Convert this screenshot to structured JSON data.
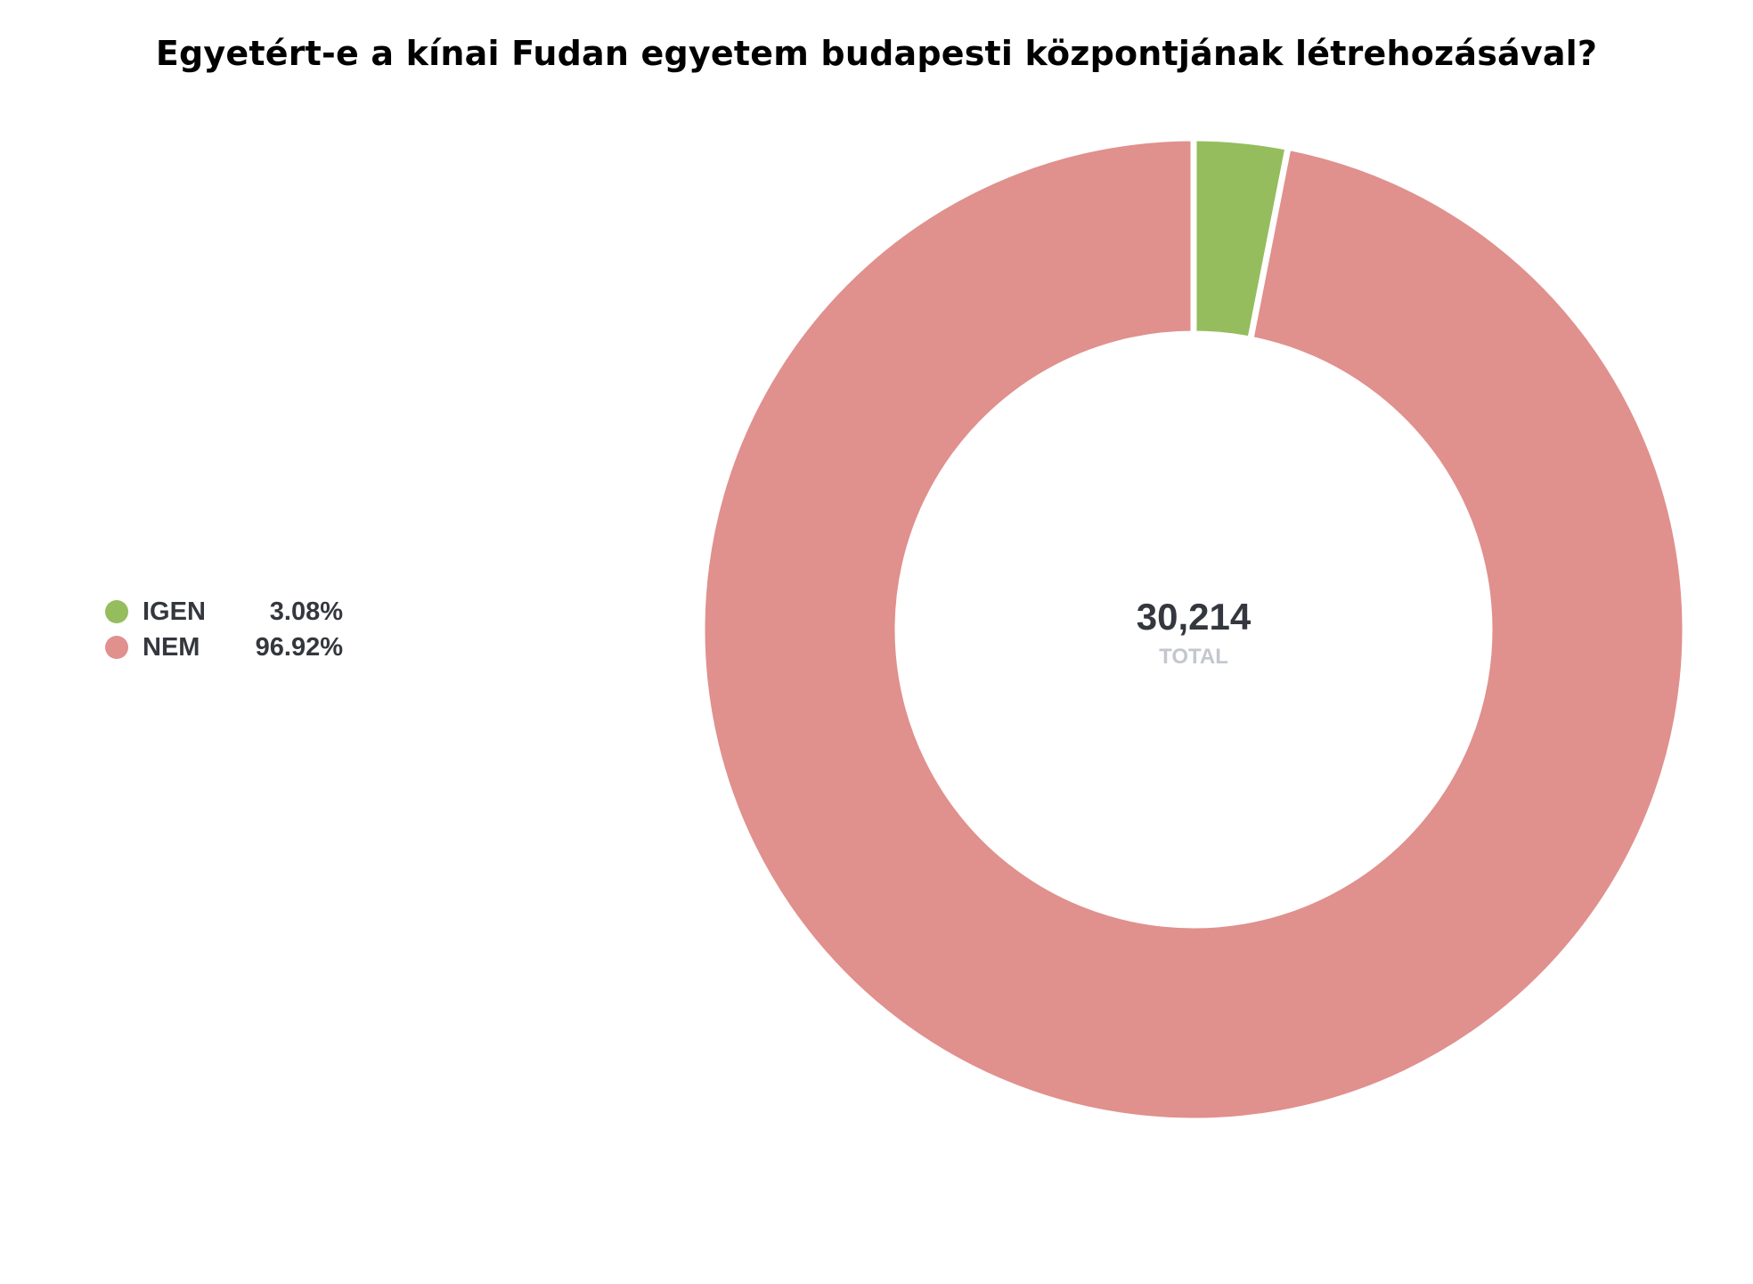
{
  "chart_data": {
    "type": "pie",
    "variant": "donut",
    "title": "Egyetért-e a kínai Fudan egyetem budapesti központjának létrehozásával?",
    "categories": [
      "IGEN",
      "NEM"
    ],
    "values": [
      3.08,
      96.92
    ],
    "value_labels": [
      "3.08%",
      "96.92%"
    ],
    "colors": [
      "#95bd5e",
      "#e0908d"
    ],
    "total": "30,214",
    "total_label": "TOTAL",
    "legend_position": "left"
  }
}
